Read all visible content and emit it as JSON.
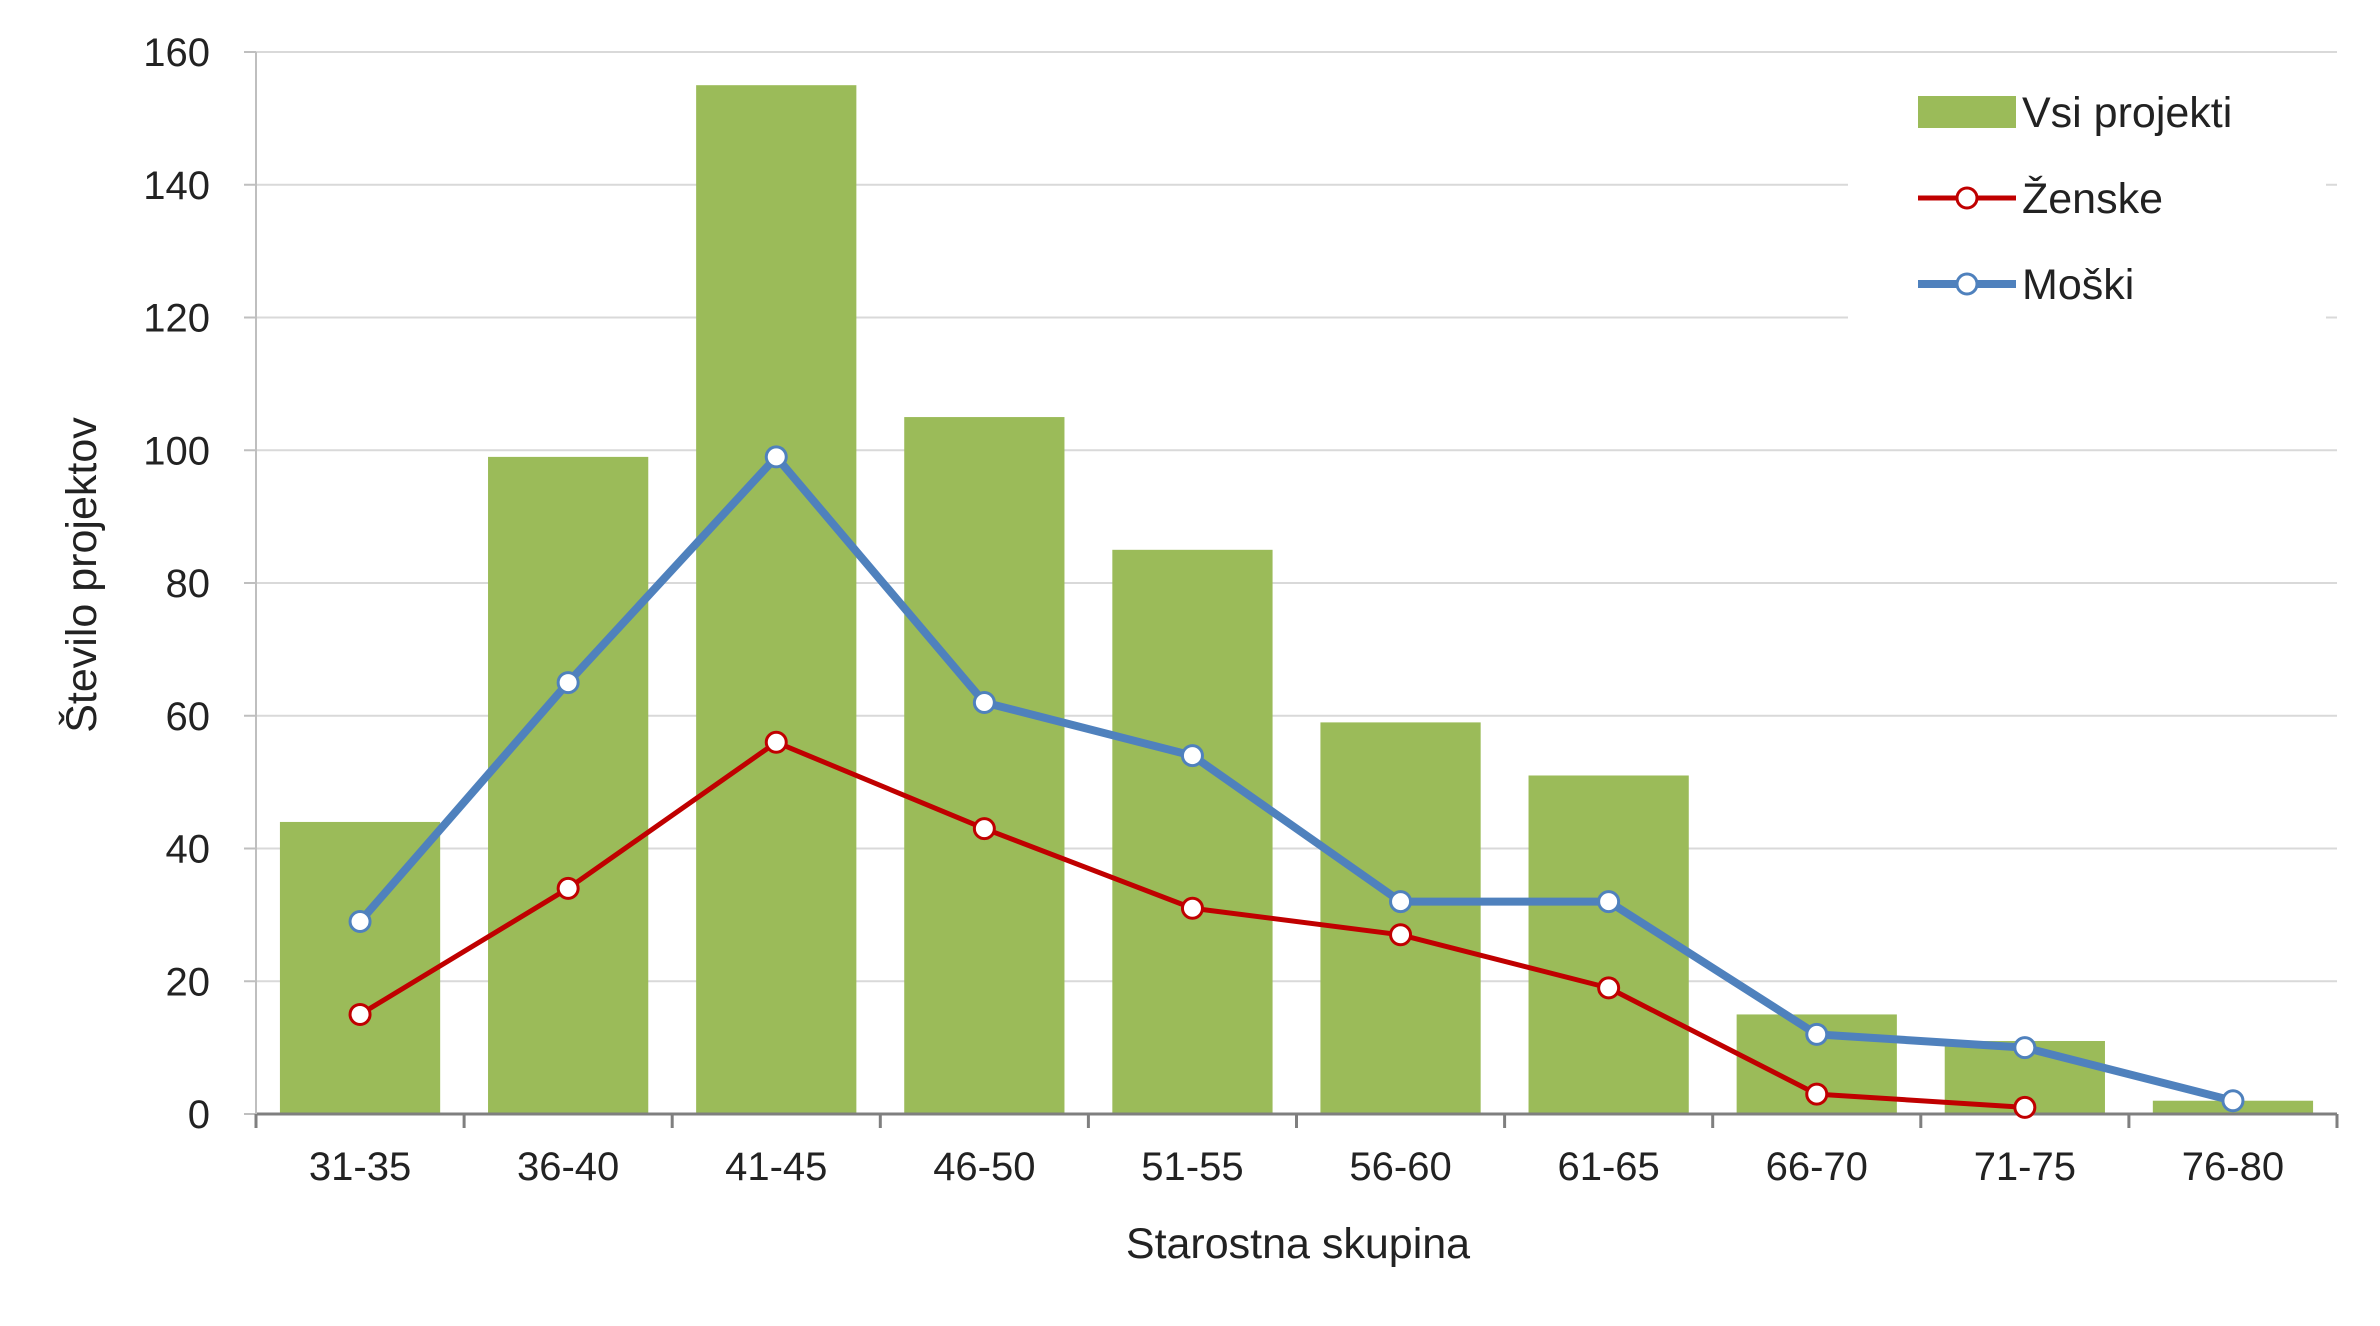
{
  "chart_data": {
    "type": "bar",
    "xlabel": "Starostna skupina",
    "ylabel": "Število projektov",
    "ylim": [
      0,
      160
    ],
    "yticks": [
      0,
      20,
      40,
      60,
      80,
      100,
      120,
      140,
      160
    ],
    "grid": true,
    "legend_position": "top-right",
    "categories": [
      "31-35",
      "36-40",
      "41-45",
      "46-50",
      "51-55",
      "56-60",
      "61-65",
      "66-70",
      "71-75",
      "76-80"
    ],
    "series": [
      {
        "name": "Vsi projekti",
        "kind": "bar",
        "color": "#9BBB59",
        "values": [
          44,
          99,
          155,
          105,
          85,
          59,
          51,
          15,
          11,
          2
        ]
      },
      {
        "name": "Ženske",
        "kind": "line",
        "color": "#C00000",
        "values": [
          15,
          34,
          56,
          43,
          31,
          27,
          19,
          3,
          1,
          null
        ]
      },
      {
        "name": "Moški",
        "kind": "line",
        "color": "#4F81BD",
        "values": [
          29,
          65,
          99,
          62,
          54,
          32,
          32,
          12,
          10,
          2
        ]
      }
    ]
  }
}
